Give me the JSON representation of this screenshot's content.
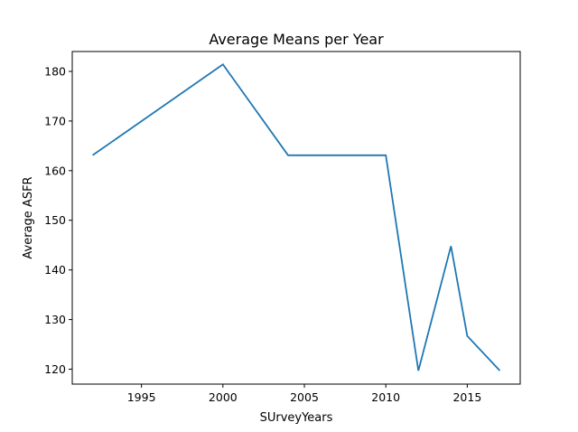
{
  "chart_data": {
    "type": "line",
    "title": "Average Means per Year",
    "xlabel": "SUrveyYears",
    "ylabel": "Average ASFR",
    "xlim": [
      1990.75,
      2018.25
    ],
    "ylim": [
      117,
      184
    ],
    "x_ticks": [
      1995,
      2000,
      2005,
      2010,
      2015
    ],
    "y_ticks": [
      120,
      130,
      140,
      150,
      160,
      170,
      180
    ],
    "grid": false,
    "series": [
      {
        "color": "#1f77b4",
        "x": [
          1992,
          2000,
          2004,
          2010,
          2012,
          2014,
          2015,
          2017
        ],
        "y": [
          163.1,
          181.4,
          163.1,
          163.1,
          119.7,
          144.8,
          126.7,
          119.7
        ]
      }
    ]
  }
}
